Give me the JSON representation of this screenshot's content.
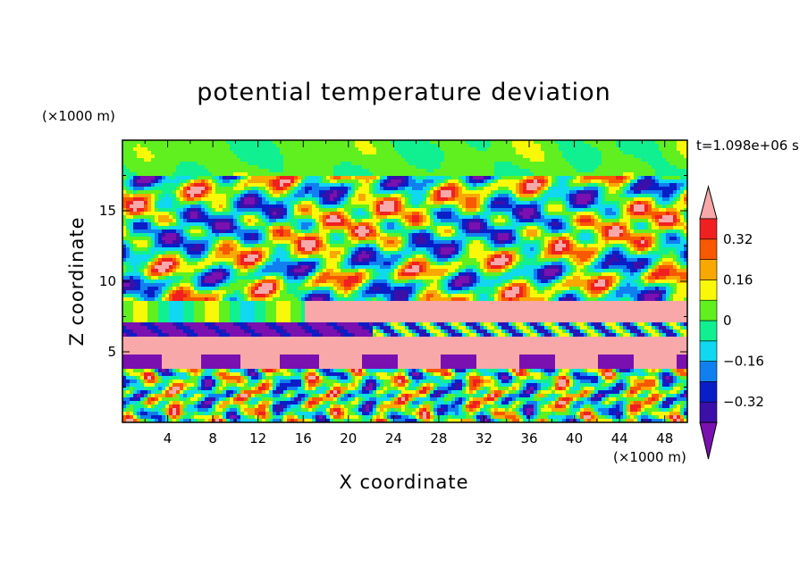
{
  "chart_data": {
    "type": "heatmap",
    "title": "potential temperature deviation",
    "xlabel": "X coordinate",
    "ylabel": "Z coordinate",
    "x_unit": "(×1000 m)",
    "y_unit": "(×1000 m)",
    "time_label": "t=1.098e+06 s",
    "xlim": [
      0,
      50
    ],
    "ylim": [
      0,
      20
    ],
    "x_ticks": [
      4,
      8,
      12,
      16,
      20,
      24,
      28,
      32,
      36,
      40,
      44,
      48
    ],
    "y_ticks": [
      5,
      10,
      15
    ],
    "colorbar": {
      "levels": [
        -0.4,
        -0.32,
        -0.24,
        -0.16,
        -0.08,
        0,
        0.08,
        0.16,
        0.24,
        0.32,
        0.4
      ],
      "tick_values": [
        0.32,
        0.16,
        0,
        -0.16,
        -0.32
      ],
      "tick_labels": [
        "0.32",
        "0.16",
        "0",
        "−0.16",
        "−0.32"
      ],
      "colors": [
        "#7a10b0",
        "#3a10a8",
        "#0a1ec8",
        "#1080f0",
        "#10d8f0",
        "#10f090",
        "#60f020",
        "#f8f808",
        "#f8a800",
        "#f85800",
        "#f02020",
        "#f8a8a8"
      ],
      "extend": "both"
    }
  }
}
